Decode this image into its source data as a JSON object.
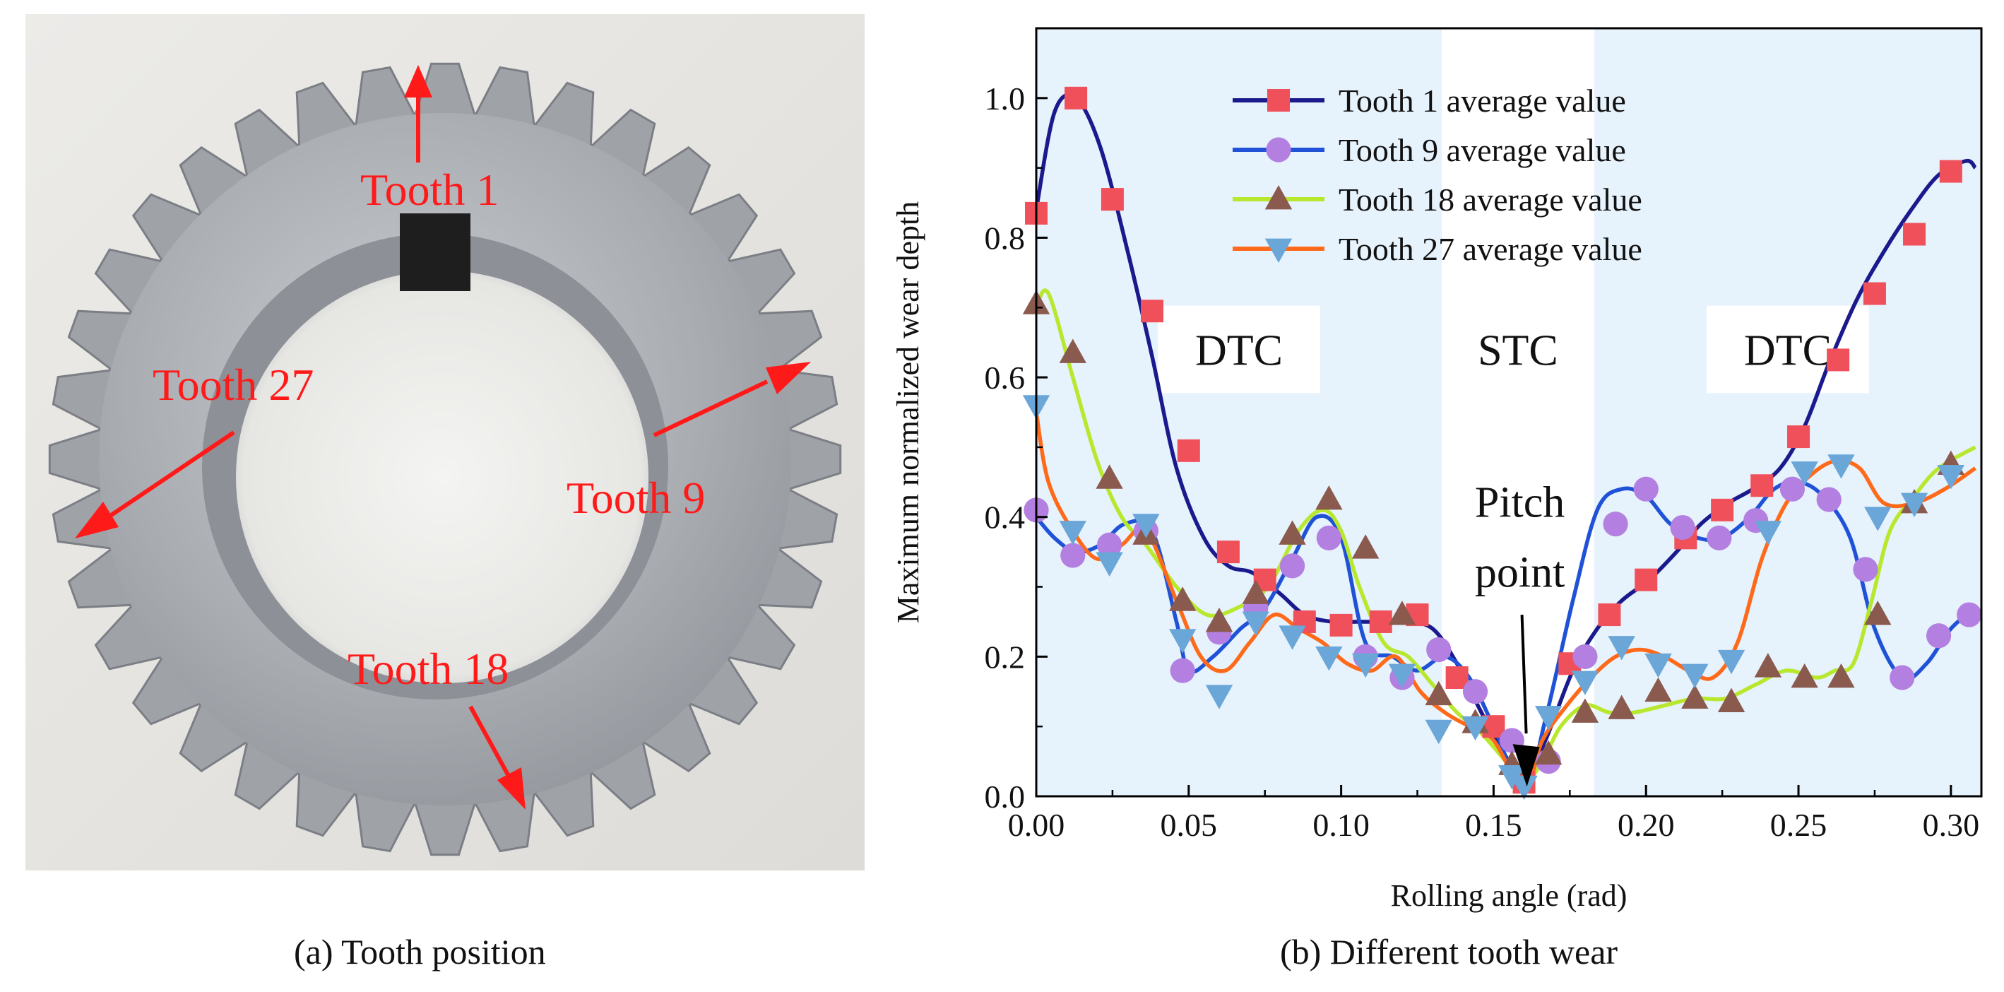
{
  "panel_a": {
    "caption": "(a) Tooth position",
    "labels": {
      "tooth1": "Tooth 1",
      "tooth9": "Tooth 9",
      "tooth18": "Tooth 18",
      "tooth27": "Tooth 27"
    }
  },
  "panel_b": {
    "caption": "(b) Different tooth wear"
  },
  "chart_data": {
    "type": "line",
    "title": "",
    "xlabel": "Rolling angle (rad)",
    "ylabel": "Maximum normalized wear depth",
    "xlim": [
      0.0,
      0.31
    ],
    "ylim": [
      0.0,
      1.1
    ],
    "xticks": [
      "0.00",
      "0.05",
      "0.10",
      "0.15",
      "0.20",
      "0.25",
      "0.30"
    ],
    "yticks": [
      "0.0",
      "0.2",
      "0.4",
      "0.6",
      "0.8",
      "1.0"
    ],
    "regions": [
      {
        "label": "DTC",
        "from": 0.0,
        "to": 0.133
      },
      {
        "label": "STC",
        "from": 0.133,
        "to": 0.183
      },
      {
        "label": "DTC",
        "from": 0.183,
        "to": 0.31
      }
    ],
    "annotation": {
      "line1": "Pitch",
      "line2": "point",
      "x": 0.16,
      "y": 0.02
    },
    "legend_position": "top-center",
    "series": [
      {
        "name": "Tooth 1 average value",
        "line_color": "#1a1a8c",
        "marker": "square",
        "marker_color": "#f0505a",
        "x": [
          0.0,
          0.006,
          0.013,
          0.021,
          0.03,
          0.038,
          0.046,
          0.055,
          0.063,
          0.071,
          0.08,
          0.088,
          0.097,
          0.105,
          0.113,
          0.121,
          0.13,
          0.138,
          0.146,
          0.155,
          0.16,
          0.167,
          0.176,
          0.184,
          0.192,
          0.201,
          0.21,
          0.218,
          0.227,
          0.235,
          0.244,
          0.252,
          0.26,
          0.269,
          0.278,
          0.287,
          0.296,
          0.305,
          0.308
        ],
        "y": [
          0.84,
          0.98,
          1.0,
          0.93,
          0.78,
          0.63,
          0.47,
          0.37,
          0.33,
          0.32,
          0.29,
          0.26,
          0.25,
          0.25,
          0.25,
          0.25,
          0.24,
          0.19,
          0.12,
          0.05,
          0.02,
          0.08,
          0.18,
          0.24,
          0.28,
          0.31,
          0.35,
          0.39,
          0.42,
          0.44,
          0.47,
          0.53,
          0.62,
          0.71,
          0.78,
          0.84,
          0.89,
          0.91,
          0.9
        ],
        "marker_x": [
          0.0,
          0.013,
          0.025,
          0.038,
          0.05,
          0.063,
          0.075,
          0.088,
          0.1,
          0.113,
          0.125,
          0.138,
          0.15,
          0.16,
          0.175,
          0.188,
          0.2,
          0.213,
          0.225,
          0.238,
          0.25,
          0.263,
          0.275,
          0.288,
          0.3
        ],
        "marker_y": [
          0.835,
          1.0,
          0.855,
          0.695,
          0.495,
          0.35,
          0.31,
          0.25,
          0.245,
          0.25,
          0.26,
          0.17,
          0.1,
          0.02,
          0.19,
          0.26,
          0.31,
          0.37,
          0.41,
          0.445,
          0.515,
          0.625,
          0.72,
          0.805,
          0.895
        ]
      },
      {
        "name": "Tooth 9 average value",
        "line_color": "#1f52d6",
        "marker": "circle",
        "marker_color": "#b37fe0",
        "x": [
          0.0,
          0.006,
          0.013,
          0.021,
          0.029,
          0.038,
          0.046,
          0.05,
          0.058,
          0.067,
          0.075,
          0.084,
          0.092,
          0.1,
          0.108,
          0.117,
          0.125,
          0.134,
          0.142,
          0.15,
          0.16,
          0.167,
          0.176,
          0.184,
          0.192,
          0.2,
          0.208,
          0.217,
          0.225,
          0.234,
          0.242,
          0.25,
          0.258,
          0.267,
          0.275,
          0.284,
          0.292,
          0.3,
          0.308
        ],
        "y": [
          0.4,
          0.37,
          0.35,
          0.36,
          0.39,
          0.38,
          0.25,
          0.18,
          0.2,
          0.24,
          0.27,
          0.34,
          0.4,
          0.37,
          0.22,
          0.2,
          0.18,
          0.2,
          0.17,
          0.1,
          0.01,
          0.11,
          0.28,
          0.41,
          0.44,
          0.43,
          0.39,
          0.37,
          0.37,
          0.4,
          0.44,
          0.45,
          0.43,
          0.37,
          0.24,
          0.17,
          0.19,
          0.24,
          0.27
        ],
        "marker_x": [
          0.0,
          0.012,
          0.024,
          0.036,
          0.048,
          0.06,
          0.072,
          0.084,
          0.096,
          0.108,
          0.12,
          0.132,
          0.144,
          0.156,
          0.168,
          0.18,
          0.19,
          0.2,
          0.212,
          0.224,
          0.236,
          0.248,
          0.26,
          0.272,
          0.284,
          0.296,
          0.306
        ],
        "marker_y": [
          0.41,
          0.345,
          0.36,
          0.38,
          0.18,
          0.235,
          0.27,
          0.33,
          0.37,
          0.2,
          0.17,
          0.21,
          0.15,
          0.08,
          0.05,
          0.2,
          0.39,
          0.44,
          0.385,
          0.37,
          0.395,
          0.44,
          0.425,
          0.325,
          0.17,
          0.23,
          0.26
        ]
      },
      {
        "name": "Tooth 18 average value",
        "line_color": "#b8e82e",
        "marker": "triangle-up",
        "marker_color": "#8a5a4e",
        "x": [
          0.0,
          0.004,
          0.012,
          0.02,
          0.028,
          0.036,
          0.046,
          0.056,
          0.066,
          0.076,
          0.086,
          0.094,
          0.1,
          0.106,
          0.114,
          0.122,
          0.13,
          0.138,
          0.146,
          0.154,
          0.16,
          0.166,
          0.172,
          0.18,
          0.188,
          0.196,
          0.206,
          0.216,
          0.226,
          0.236,
          0.246,
          0.256,
          0.262,
          0.268,
          0.274,
          0.28,
          0.288,
          0.296,
          0.308
        ],
        "y": [
          0.7,
          0.72,
          0.6,
          0.48,
          0.4,
          0.36,
          0.3,
          0.26,
          0.27,
          0.3,
          0.38,
          0.41,
          0.38,
          0.3,
          0.22,
          0.2,
          0.16,
          0.12,
          0.09,
          0.05,
          0.02,
          0.05,
          0.1,
          0.13,
          0.12,
          0.12,
          0.13,
          0.14,
          0.14,
          0.16,
          0.18,
          0.17,
          0.18,
          0.19,
          0.28,
          0.38,
          0.43,
          0.47,
          0.5
        ],
        "marker_x": [
          0.0,
          0.012,
          0.024,
          0.036,
          0.048,
          0.06,
          0.072,
          0.084,
          0.096,
          0.108,
          0.12,
          0.132,
          0.144,
          0.156,
          0.168,
          0.18,
          0.192,
          0.204,
          0.216,
          0.228,
          0.24,
          0.252,
          0.264,
          0.276,
          0.288,
          0.3
        ],
        "marker_y": [
          0.705,
          0.635,
          0.455,
          0.375,
          0.28,
          0.25,
          0.29,
          0.375,
          0.425,
          0.355,
          0.26,
          0.145,
          0.105,
          0.045,
          0.06,
          0.12,
          0.125,
          0.15,
          0.14,
          0.135,
          0.185,
          0.17,
          0.17,
          0.26,
          0.42,
          0.475
        ]
      },
      {
        "name": "Tooth 27 average value",
        "line_color": "#ff6a1a",
        "marker": "triangle-down",
        "marker_color": "#6aa6d8",
        "x": [
          0.0,
          0.004,
          0.012,
          0.02,
          0.028,
          0.036,
          0.046,
          0.054,
          0.062,
          0.07,
          0.078,
          0.086,
          0.094,
          0.102,
          0.11,
          0.118,
          0.126,
          0.134,
          0.142,
          0.15,
          0.16,
          0.166,
          0.174,
          0.182,
          0.19,
          0.198,
          0.206,
          0.214,
          0.222,
          0.23,
          0.238,
          0.246,
          0.254,
          0.262,
          0.27,
          0.278,
          0.288,
          0.298,
          0.308
        ],
        "y": [
          0.55,
          0.45,
          0.38,
          0.34,
          0.36,
          0.38,
          0.28,
          0.2,
          0.18,
          0.22,
          0.26,
          0.24,
          0.22,
          0.19,
          0.18,
          0.2,
          0.15,
          0.12,
          0.1,
          0.08,
          0.01,
          0.08,
          0.13,
          0.17,
          0.2,
          0.21,
          0.2,
          0.18,
          0.17,
          0.22,
          0.34,
          0.42,
          0.46,
          0.48,
          0.47,
          0.42,
          0.42,
          0.44,
          0.47
        ],
        "marker_x": [
          0.0,
          0.012,
          0.024,
          0.036,
          0.048,
          0.06,
          0.072,
          0.084,
          0.096,
          0.108,
          0.12,
          0.132,
          0.144,
          0.156,
          0.16,
          0.168,
          0.18,
          0.192,
          0.204,
          0.216,
          0.228,
          0.24,
          0.252,
          0.264,
          0.276,
          0.288,
          0.3
        ],
        "marker_y": [
          0.56,
          0.38,
          0.335,
          0.39,
          0.225,
          0.145,
          0.25,
          0.23,
          0.2,
          0.19,
          0.175,
          0.095,
          0.1,
          0.03,
          0.015,
          0.115,
          0.165,
          0.215,
          0.19,
          0.175,
          0.195,
          0.38,
          0.465,
          0.475,
          0.4,
          0.42,
          0.46
        ]
      }
    ]
  }
}
